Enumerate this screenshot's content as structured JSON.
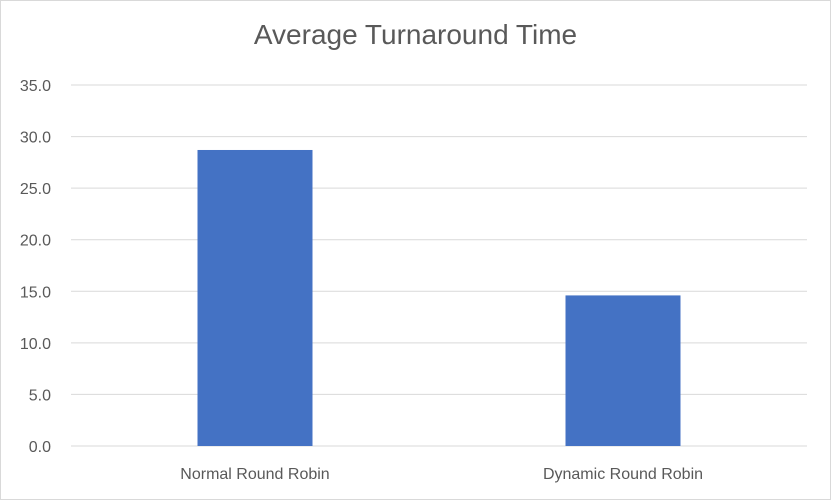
{
  "chart_data": {
    "type": "bar",
    "title": "Average Turnaround Time",
    "categories": [
      "Normal Round Robin",
      "Dynamic Round Robin"
    ],
    "values": [
      28.7,
      14.6
    ],
    "ylim": [
      0,
      35
    ],
    "yticks": [
      "0.0",
      "5.0",
      "10.0",
      "15.0",
      "20.0",
      "25.0",
      "30.0",
      "35.0"
    ],
    "grid": true,
    "bar_color": "#4472c4",
    "grid_color": "#d9d9d9",
    "text_color": "#595959"
  }
}
